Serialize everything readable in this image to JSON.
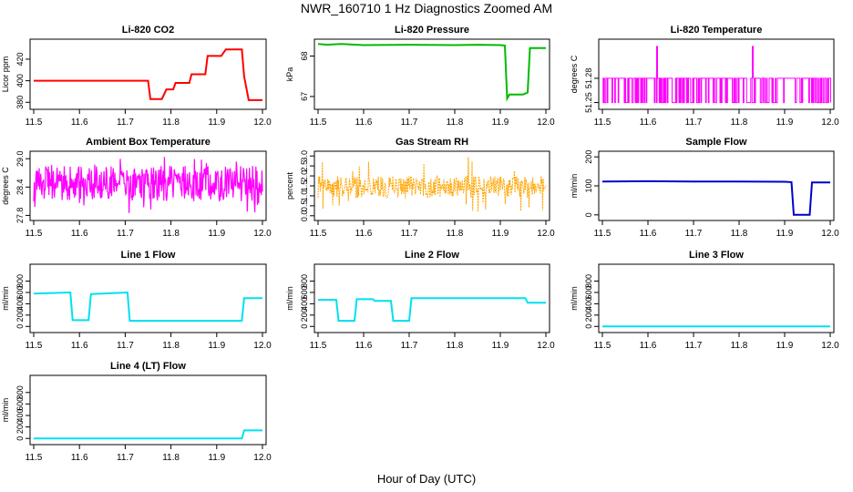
{
  "title": "NWR_160710  1 Hz Diagnostics Zoomed AM",
  "xlabel": "Hour of Day (UTC)",
  "chart_data": [
    {
      "type": "line",
      "title": "Li-820 CO2",
      "ylabel": "Licor ppm",
      "color": "#ff0000",
      "xlim": [
        11.5,
        12.0
      ],
      "xticks": [
        11.5,
        11.6,
        11.7,
        11.8,
        11.9,
        12.0
      ],
      "ylim": [
        376,
        436
      ],
      "yticks": [
        380,
        400,
        420
      ],
      "series": [
        {
          "x": [
            11.5,
            11.75,
            11.755,
            11.78,
            11.79,
            11.805,
            11.81,
            11.84,
            11.845,
            11.875,
            11.88,
            11.91,
            11.92,
            11.955,
            11.96,
            11.97,
            12.0
          ],
          "y": [
            400,
            400,
            383,
            383,
            392,
            392,
            398,
            398,
            406,
            406,
            423,
            423,
            429,
            429,
            404,
            382,
            382
          ]
        }
      ]
    },
    {
      "type": "line",
      "title": "Li-820 Pressure",
      "ylabel": "kPa",
      "color": "#00bb00",
      "xlim": [
        11.5,
        12.0
      ],
      "xticks": [
        11.5,
        11.6,
        11.7,
        11.8,
        11.9,
        12.0
      ],
      "ylim": [
        66.75,
        68.35
      ],
      "yticks": [
        67.0,
        68.0
      ],
      "series": [
        {
          "x": [
            11.5,
            11.52,
            11.55,
            11.6,
            11.7,
            11.8,
            11.85,
            11.9,
            11.91,
            11.915,
            11.92,
            11.95,
            11.96,
            11.965,
            11.97,
            12.0
          ],
          "y": [
            68.3,
            68.28,
            68.3,
            68.27,
            68.28,
            68.27,
            68.28,
            68.27,
            68.26,
            66.95,
            67.05,
            67.05,
            67.1,
            68.2,
            68.2,
            68.2
          ]
        }
      ]
    },
    {
      "type": "line",
      "title": "Li-820 Temperature",
      "ylabel": "degrees C",
      "color": "#ff00ff",
      "xlim": [
        11.5,
        12.0
      ],
      "xticks": [
        11.5,
        11.6,
        11.7,
        11.8,
        11.9,
        12.0
      ],
      "ylim": [
        51.245,
        51.325
      ],
      "yticks": [
        51.25,
        51.28
      ],
      "band": [
        51.25,
        51.28
      ],
      "spikes": [
        11.62,
        11.83
      ],
      "spike_value": 51.32
    },
    {
      "type": "line",
      "title": "Ambient Box Temperature",
      "ylabel": "degrees C",
      "color": "#ff00ff",
      "xlim": [
        11.5,
        12.0
      ],
      "xticks": [
        11.5,
        11.6,
        11.7,
        11.8,
        11.9,
        12.0
      ],
      "ylim": [
        27.75,
        29.1
      ],
      "yticks": [
        27.8,
        28.4,
        29.0
      ],
      "band": [
        28.1,
        28.85
      ],
      "spike_lo": 27.85,
      "spike_hi": 29.05
    },
    {
      "type": "line",
      "title": "Gas Stream RH",
      "ylabel": "percent",
      "color": "#ffa500",
      "xlim": [
        11.5,
        12.0
      ],
      "xticks": [
        11.5,
        11.6,
        11.7,
        11.8,
        11.9,
        12.0
      ],
      "ylim": [
        -0.1,
        3.1
      ],
      "yticks": [
        0.0,
        0.5,
        1.0,
        1.5,
        2.0,
        2.5,
        3.0
      ],
      "band": [
        0.9,
        2.0
      ],
      "spike_lo": 0.2,
      "spike_hi": 3.0
    },
    {
      "type": "line",
      "title": "Sample Flow",
      "ylabel": "ml/min",
      "color": "#0000cc",
      "xlim": [
        11.5,
        12.0
      ],
      "xticks": [
        11.5,
        11.6,
        11.7,
        11.8,
        11.9,
        12.0
      ],
      "ylim": [
        -10,
        210
      ],
      "yticks": [
        0,
        100,
        200
      ],
      "series": [
        {
          "x": [
            11.5,
            11.6,
            11.7,
            11.8,
            11.9,
            11.915,
            11.92,
            11.955,
            11.96,
            12.0
          ],
          "y": [
            115,
            116,
            115,
            115,
            114,
            113,
            0,
            0,
            112,
            112
          ]
        }
      ]
    },
    {
      "type": "line",
      "title": "Line 1 Flow",
      "ylabel": "ml/min",
      "color": "#00e0ee",
      "xlim": [
        11.5,
        12.0
      ],
      "xticks": [
        11.5,
        11.6,
        11.7,
        11.8,
        11.9,
        12.0
      ],
      "ylim": [
        -60,
        1050
      ],
      "yticks": [
        0,
        200,
        400,
        600,
        800
      ],
      "series": [
        {
          "x": [
            11.5,
            11.58,
            11.585,
            11.62,
            11.625,
            11.705,
            11.71,
            11.955,
            11.96,
            12.0
          ],
          "y": [
            580,
            600,
            110,
            110,
            570,
            600,
            100,
            100,
            500,
            500
          ]
        }
      ]
    },
    {
      "type": "line",
      "title": "Line 2 Flow",
      "ylabel": "ml/min",
      "color": "#00e0ee",
      "xlim": [
        11.5,
        12.0
      ],
      "xticks": [
        11.5,
        11.6,
        11.7,
        11.8,
        11.9,
        12.0
      ],
      "ylim": [
        -60,
        1050
      ],
      "yticks": [
        0,
        200,
        400,
        600,
        800
      ],
      "series": [
        {
          "x": [
            11.5,
            11.54,
            11.545,
            11.58,
            11.585,
            11.62,
            11.625,
            11.66,
            11.665,
            11.7,
            11.705,
            11.955,
            11.96,
            12.0
          ],
          "y": [
            470,
            470,
            100,
            100,
            480,
            480,
            450,
            450,
            100,
            100,
            500,
            500,
            420,
            420
          ]
        }
      ]
    },
    {
      "type": "line",
      "title": "Line 3 Flow",
      "ylabel": "ml/min",
      "color": "#00e0ee",
      "xlim": [
        11.5,
        12.0
      ],
      "xticks": [
        11.5,
        11.6,
        11.7,
        11.8,
        11.9,
        12.0
      ],
      "ylim": [
        -60,
        1050
      ],
      "yticks": [
        0,
        200,
        400,
        600,
        800
      ],
      "series": [
        {
          "x": [
            11.5,
            12.0
          ],
          "y": [
            0,
            0
          ]
        }
      ]
    },
    {
      "type": "line",
      "title": "Line 4 (LT) Flow",
      "ylabel": "ml/min",
      "color": "#00e0ee",
      "xlim": [
        11.5,
        12.0
      ],
      "xticks": [
        11.5,
        11.6,
        11.7,
        11.8,
        11.9,
        12.0
      ],
      "ylim": [
        -60,
        1050
      ],
      "yticks": [
        0,
        200,
        400,
        600,
        800
      ],
      "series": [
        {
          "x": [
            11.5,
            11.955,
            11.96,
            12.0
          ],
          "y": [
            0,
            0,
            140,
            140
          ]
        }
      ]
    }
  ]
}
